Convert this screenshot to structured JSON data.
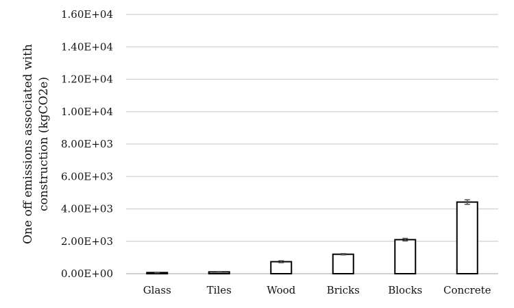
{
  "chart_data": {
    "type": "bar",
    "categories": [
      "Glass",
      "Tiles",
      "Wood",
      "Bricks",
      "Blocks",
      "Concrete"
    ],
    "values": [
      70,
      110,
      740,
      1200,
      2100,
      4420
    ],
    "error": [
      20,
      25,
      60,
      40,
      80,
      140
    ],
    "ylabel_line1": "One off emissions associated with",
    "ylabel_line2": "construction (kgCO2e)",
    "xlabel": "",
    "ylim": [
      0,
      16000
    ],
    "yticks": [
      0,
      2000,
      4000,
      6000,
      8000,
      10000,
      12000,
      14000,
      16000
    ],
    "ytick_labels": [
      "0.00E+00",
      "2.00E+03",
      "4.00E+03",
      "6.00E+03",
      "8.00E+03",
      "1.00E+04",
      "1.20E+04",
      "1.40E+04",
      "1.60E+04"
    ],
    "grid": true,
    "legend": "none",
    "bar_fill": "#ffffff",
    "bar_stroke": "#000000"
  }
}
